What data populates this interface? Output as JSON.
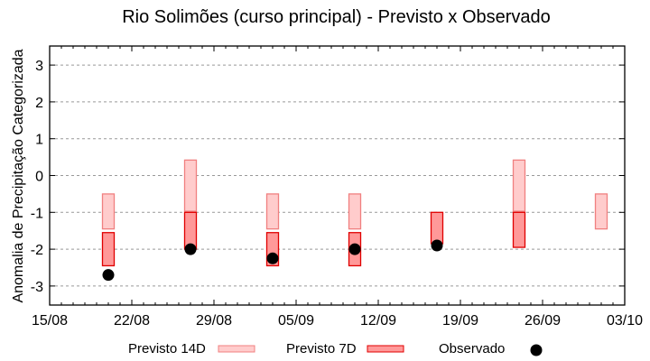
{
  "chart_data": {
    "type": "bar",
    "title": "Rio Solimões (curso principal) - Previsto x Observado",
    "xlabel": "",
    "ylabel": "Anomalia de Precipitação Categorizada",
    "ylim": [
      -3.5,
      3.5
    ],
    "yticks": [
      3,
      2,
      1,
      0,
      -1,
      -2,
      -3
    ],
    "xticks": [
      "15/08",
      "22/08",
      "29/08",
      "05/09",
      "12/09",
      "19/09",
      "26/09",
      "03/10"
    ],
    "grid": "horizontal dotted",
    "legend_position": "bottom",
    "categories": [
      "20/08",
      "27/08",
      "03/09",
      "10/09",
      "17/09",
      "24/09",
      "01/10"
    ],
    "series": [
      {
        "name": "Previsto 14D",
        "kind": "range",
        "color_fill": "#ffcccc",
        "color_stroke": "#f08080",
        "ranges": [
          [
            -0.5,
            -1.45
          ],
          [
            0.42,
            -0.97
          ],
          [
            -0.5,
            -1.45
          ],
          [
            -0.5,
            -1.45
          ],
          null,
          [
            0.42,
            -0.97
          ],
          [
            -0.5,
            -1.45
          ]
        ]
      },
      {
        "name": "Previsto 7D",
        "kind": "range",
        "color_fill": "#ff9999",
        "color_stroke": "#e00000",
        "ranges": [
          [
            -1.55,
            -2.45
          ],
          [
            -1.0,
            -2.0
          ],
          [
            -1.55,
            -2.45
          ],
          [
            -1.55,
            -2.45
          ],
          [
            -1.0,
            -1.85
          ],
          [
            -1.0,
            -1.95
          ],
          null
        ]
      },
      {
        "name": "Observado",
        "kind": "point",
        "color": "#000000",
        "values": [
          -2.7,
          -2.0,
          -2.25,
          -2.0,
          -1.9,
          null,
          null
        ]
      }
    ]
  },
  "legend": {
    "item0": "Previsto 14D",
    "item1": "Previsto 7D",
    "item2": "Observado"
  }
}
